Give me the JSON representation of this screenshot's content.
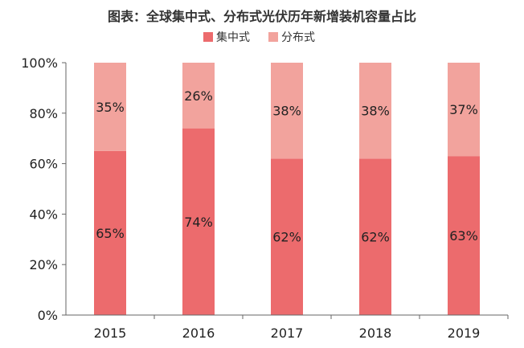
{
  "chart_data": {
    "type": "bar",
    "stacked": true,
    "title": "图表：全球集中式、分布式光伏历年新增装机容量占比",
    "categories": [
      "2015",
      "2016",
      "2017",
      "2018",
      "2019"
    ],
    "series": [
      {
        "name": "集中式",
        "values": [
          65,
          74,
          62,
          62,
          63
        ],
        "labels": [
          "65%",
          "74%",
          "62%",
          "62%",
          "63%"
        ],
        "color": "#EC6B6D"
      },
      {
        "name": "分布式",
        "values": [
          35,
          26,
          38,
          38,
          37
        ],
        "labels": [
          "35%",
          "26%",
          "38%",
          "38%",
          "37%"
        ],
        "color": "#F2A39D"
      }
    ],
    "y_ticks": [
      "0%",
      "20%",
      "40%",
      "60%",
      "80%",
      "100%"
    ],
    "ylim": [
      0,
      100
    ],
    "grid": false,
    "legend_position": "top-center",
    "xlabel": "",
    "ylabel": ""
  }
}
